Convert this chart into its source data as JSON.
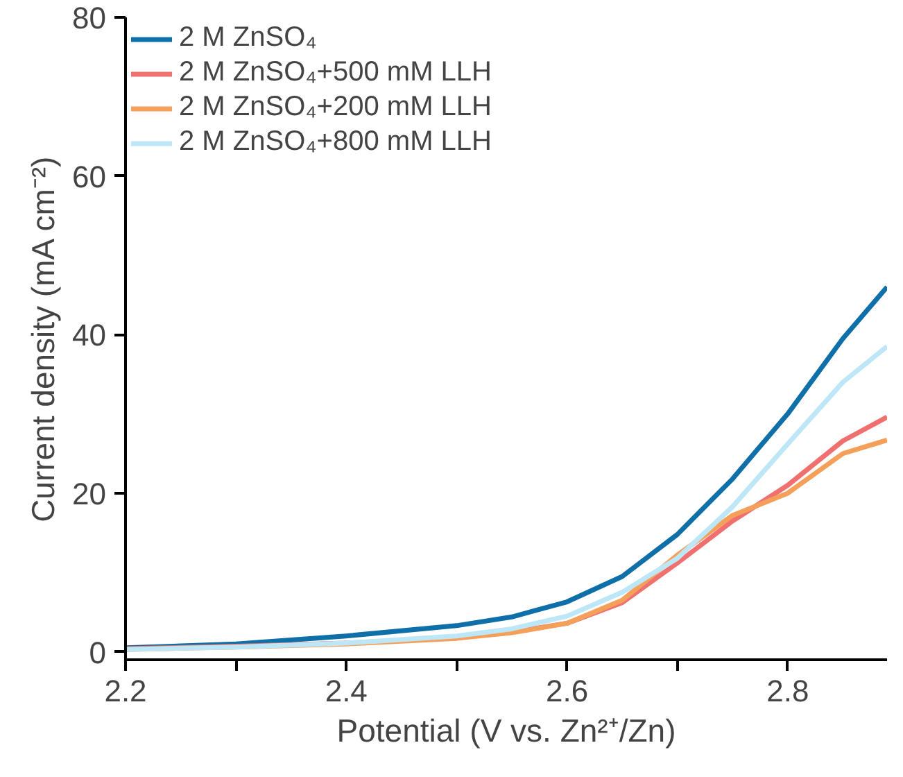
{
  "chart_data": {
    "type": "line",
    "xlabel": "Potential (V vs. Zn²⁺/Zn)",
    "ylabel": "Current density (mA cm⁻²)",
    "x": [
      2.2,
      2.3,
      2.4,
      2.5,
      2.55,
      2.6,
      2.65,
      2.7,
      2.75,
      2.8,
      2.85,
      2.89
    ],
    "xlim": [
      2.2,
      2.89
    ],
    "ylim": [
      -1,
      80
    ],
    "xticks": [
      2.2,
      {
        "value": 2.3,
        "label": null
      },
      2.4,
      {
        "value": 2.5,
        "label": null
      },
      2.6,
      {
        "value": 2.7,
        "label": null
      },
      2.8
    ],
    "yticks": [
      0,
      20,
      40,
      60,
      80
    ],
    "series": [
      {
        "name": "2 M ZnSO₄",
        "color": "#0f6fa8",
        "values": [
          0.5,
          1.0,
          2.0,
          3.3,
          4.4,
          6.3,
          9.5,
          14.8,
          21.8,
          30.0,
          39.5,
          46.0
        ]
      },
      {
        "name": "2 M ZnSO₄+500 mM LLH",
        "color": "#f07070",
        "values": [
          0.4,
          0.7,
          1.1,
          1.8,
          2.5,
          3.6,
          6.2,
          11.2,
          16.5,
          21.0,
          26.6,
          29.6
        ]
      },
      {
        "name": "2 M ZnSO₄+200 mM LLH",
        "color": "#f5a05a",
        "values": [
          0.3,
          0.6,
          1.0,
          1.7,
          2.4,
          3.6,
          6.5,
          12.2,
          17.2,
          20.0,
          25.0,
          26.7
        ]
      },
      {
        "name": "2 M ZnSO₄+800 mM LLH",
        "color": "#bde6f7",
        "values": [
          0.3,
          0.6,
          1.1,
          2.0,
          2.9,
          4.5,
          7.5,
          11.8,
          18.3,
          26.2,
          34.0,
          38.5
        ]
      }
    ],
    "legend": "top left",
    "grid": false,
    "marker": "none",
    "line_style": "solid"
  }
}
